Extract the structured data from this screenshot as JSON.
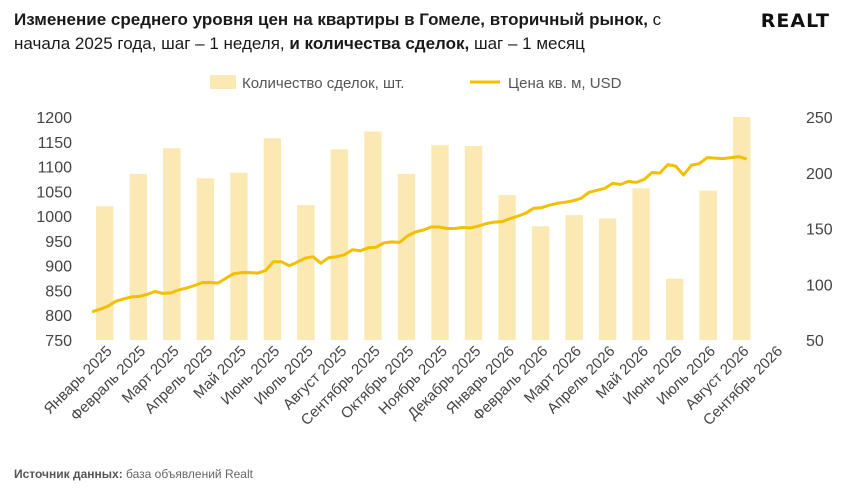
{
  "header": {
    "title_bold_1": "Изменение среднего уровня цен на квартиры в Гомеле, вторичный рынок,",
    "title_plain_1": " с начала 2025 года, шаг – 1 неделя, ",
    "title_bold_2": "и количества сделок,",
    "title_plain_2": " шаг – 1 месяц",
    "logo": "REALT"
  },
  "footer": {
    "source_label": "Источник данных:",
    "source_text": " база объявлений Realt"
  },
  "colors": {
    "bars": "#fbe9b4",
    "line": "#f2c000"
  },
  "chart_data": {
    "type": "bar+line",
    "categories": [
      "Январь 2025",
      "Февраль 2025",
      "Март 2025",
      "Апрель 2025",
      "Май 2025",
      "Июнь 2025",
      "Июль 2025",
      "Август 2025",
      "Сентябрь 2025",
      "Октябрь 2025",
      "Ноябрь 2025",
      "Декабрь 2025",
      "Январь 2026",
      "Февраль 2026",
      "Март 2026",
      "Апрель 2026",
      "Май 2026",
      "Июнь 2026",
      "Июль 2026",
      "Август 2026",
      "Сентябрь 2026"
    ],
    "legend": [
      "Количество сделок, шт.",
      "Цена кв. м, USD"
    ],
    "legend_position": "top-center",
    "bar_series": {
      "name": "Количество сделок, шт.",
      "axis": "right",
      "values": [
        170,
        199,
        222,
        195,
        200,
        231,
        171,
        221,
        237,
        199,
        225,
        224,
        180,
        152,
        162,
        159,
        186,
        105,
        184,
        250
      ]
    },
    "line_series": {
      "name": "Цена кв. м, USD",
      "axis": "left",
      "values": [
        807,
        812,
        818,
        828,
        833,
        837,
        838,
        842,
        848,
        844,
        845,
        851,
        855,
        860,
        866,
        866,
        865,
        875,
        884,
        886,
        886,
        885,
        890,
        908,
        908,
        900,
        907,
        915,
        918,
        905,
        916,
        918,
        922,
        932,
        930,
        936,
        937,
        946,
        948,
        947,
        960,
        968,
        972,
        978,
        978,
        975,
        975,
        977,
        976,
        980,
        985,
        988,
        989,
        995,
        1000,
        1006,
        1016,
        1017,
        1022,
        1026,
        1028,
        1031,
        1036,
        1048,
        1052,
        1056,
        1066,
        1064,
        1070,
        1068,
        1074,
        1088,
        1087,
        1104,
        1101,
        1083,
        1103,
        1106,
        1118,
        1117,
        1116,
        1118,
        1120,
        1115
      ]
    },
    "y_left": {
      "min": 750,
      "max": 1200,
      "ticks": [
        750,
        800,
        850,
        900,
        950,
        1000,
        1050,
        1100,
        1150,
        1200
      ]
    },
    "y_right": {
      "min": 50,
      "max": 250,
      "ticks": [
        50,
        100,
        150,
        200,
        250
      ]
    },
    "grid": false
  }
}
